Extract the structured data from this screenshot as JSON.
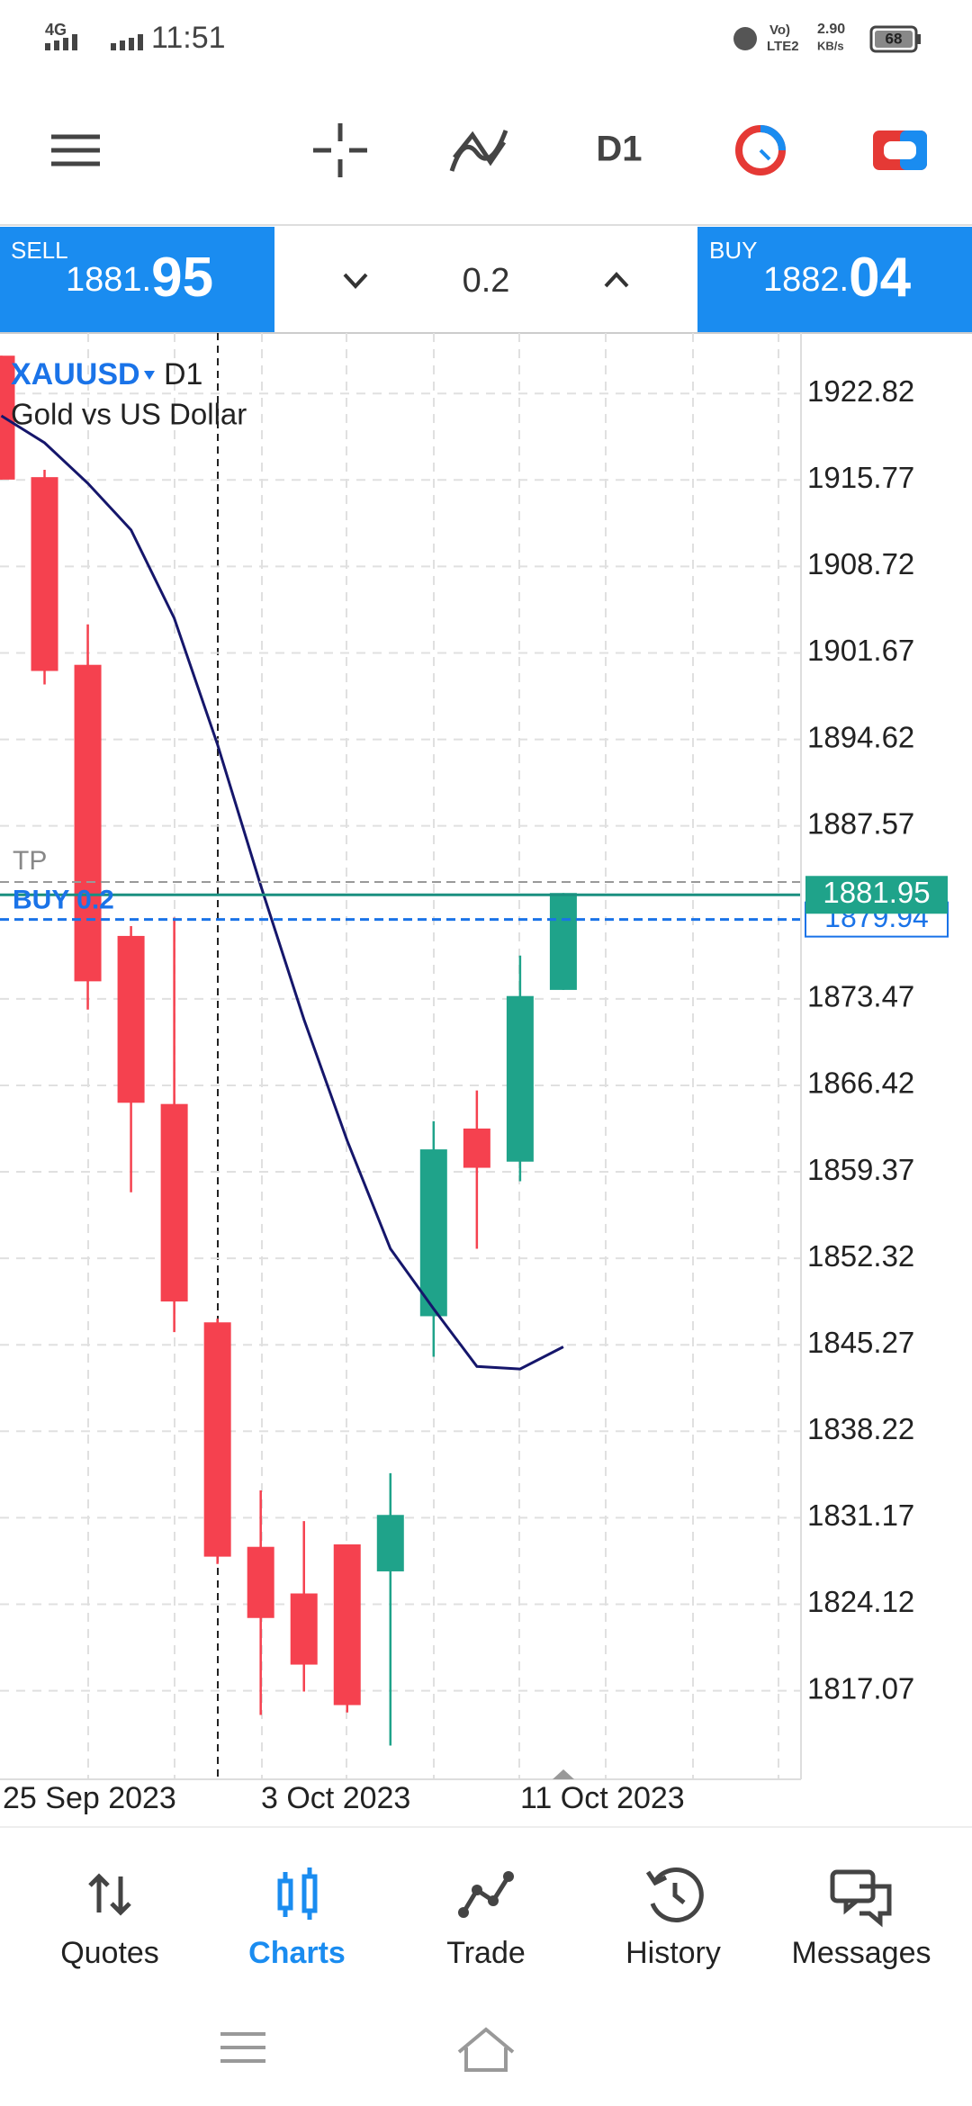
{
  "status_bar": {
    "network": "4G",
    "time": "11:51",
    "volte_top": "Vo)",
    "volte_bottom": "LTE2",
    "speed": "2.90",
    "speed_unit": "KB/s",
    "battery": "68"
  },
  "toolbar": {
    "timeframe": "D1"
  },
  "trade_panel": {
    "sell_label": "SELL",
    "sell_price_main": "1881.",
    "sell_price_pips": "95",
    "volume": "0.2",
    "buy_label": "BUY",
    "buy_price_main": "1882.",
    "buy_price_pips": "04"
  },
  "chart": {
    "symbol": "XAUUSD",
    "symbol_timeframe": "D1",
    "description": "Gold vs US Dollar",
    "ylim": [
      1809.85,
      1927.75
    ],
    "yticks": [
      1922.82,
      1915.77,
      1908.72,
      1901.67,
      1894.62,
      1887.57,
      1873.47,
      1866.42,
      1859.37,
      1852.32,
      1845.27,
      1838.22,
      1831.17,
      1824.12,
      1817.07
    ],
    "dates": [
      "25 Sep 2023",
      "3 Oct 2023",
      "11 Oct 2023"
    ],
    "candles": [
      {
        "open": 1925.9,
        "high": 1925.9,
        "low": 1915.8,
        "close": 1915.8
      },
      {
        "open": 1916.0,
        "high": 1916.6,
        "low": 1899.1,
        "close": 1900.2
      },
      {
        "open": 1900.7,
        "high": 1904.0,
        "low": 1872.6,
        "close": 1874.9
      },
      {
        "open": 1878.6,
        "high": 1879.4,
        "low": 1857.7,
        "close": 1865.0
      },
      {
        "open": 1864.9,
        "high": 1880.1,
        "low": 1846.3,
        "close": 1848.8
      },
      {
        "open": 1847.1,
        "high": 1847.4,
        "low": 1827.4,
        "close": 1828.0
      },
      {
        "open": 1828.8,
        "high": 1833.4,
        "low": 1815.1,
        "close": 1823.0
      },
      {
        "open": 1825.0,
        "high": 1830.9,
        "low": 1817.0,
        "close": 1819.2
      },
      {
        "open": 1829.0,
        "high": 1829.0,
        "low": 1815.3,
        "close": 1815.9
      },
      {
        "open": 1826.8,
        "high": 1834.8,
        "low": 1812.6,
        "close": 1831.4
      },
      {
        "open": 1847.6,
        "high": 1863.5,
        "low": 1844.3,
        "close": 1861.2
      },
      {
        "open": 1862.9,
        "high": 1866.0,
        "low": 1853.1,
        "close": 1859.7
      },
      {
        "open": 1860.2,
        "high": 1877.0,
        "low": 1858.6,
        "close": 1873.7
      },
      {
        "open": 1874.2,
        "high": 1882.1,
        "low": 1874.2,
        "close": 1882.1
      }
    ],
    "moving_average": [
      1921.0,
      1918.8,
      1915.5,
      1911.7,
      1904.5,
      1894.2,
      1882.7,
      1871.8,
      1861.9,
      1853.1,
      1848.2,
      1843.5,
      1843.3,
      1845.1
    ],
    "tp": {
      "label": "TP",
      "value": 1883.0
    },
    "buy_order": {
      "label": "BUY 0.2",
      "value": 1879.94
    },
    "bid": {
      "value": 1881.95
    }
  },
  "bottom_nav": {
    "items": [
      "Quotes",
      "Charts",
      "Trade",
      "History",
      "Messages"
    ]
  }
}
